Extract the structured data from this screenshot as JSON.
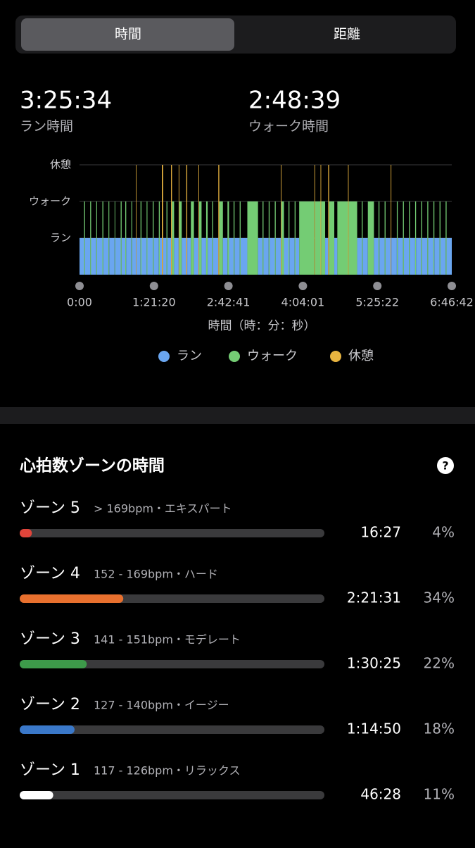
{
  "tabs": [
    "時間",
    "距離"
  ],
  "stats": [
    {
      "value": "3:25:34",
      "label": "ラン時間"
    },
    {
      "value": "2:48:39",
      "label": "ウォーク時間"
    }
  ],
  "chart_data": {
    "type": "state-band",
    "x": [
      0,
      300,
      360,
      700,
      760,
      1100,
      1150,
      1500,
      1560,
      1900,
      1950,
      2300,
      2340,
      2700,
      2760,
      3000,
      3060,
      3400,
      3450,
      3700,
      3730,
      4000,
      4060,
      4400,
      4450,
      4800,
      4860,
      5200,
      5260,
      5400,
      5480,
      5700,
      5760,
      6000,
      6060,
      6200,
      6500,
      6540,
      6700,
      7000,
      7060,
      7300,
      7500,
      7800,
      7840,
      8000,
      8300,
      8400,
      8700,
      8760,
      9100,
      9160,
      9400,
      9700,
      9800,
      10100,
      10160,
      10500,
      10560,
      11000,
      11700,
      12000,
      12060,
      12400,
      12460,
      12800,
      12860,
      13200,
      13240,
      13400,
      13700,
      13760,
      14100,
      14160,
      14400,
      15400,
      15440,
      15800,
      15840,
      16100,
      16300,
      16360,
      16700,
      16900,
      17600,
      17640,
      18200,
      18500,
      18560,
      18900,
      19300,
      19600,
      19660,
      20000,
      20060,
      20400,
      20440,
      20800,
      20860,
      21200,
      21260,
      21600,
      21660,
      22000,
      22060,
      22400,
      22460,
      22800,
      22860,
      23200,
      23260,
      23600,
      23660,
      24000,
      24060
    ],
    "values": [
      1,
      2,
      1,
      2,
      1,
      2,
      1,
      2,
      1,
      2,
      1,
      2,
      1,
      2,
      1,
      2,
      1,
      2,
      1,
      3,
      1,
      2,
      1,
      2,
      1,
      2,
      1,
      2,
      1,
      3,
      1,
      2,
      1,
      3,
      2,
      1,
      3,
      2,
      1,
      3,
      1,
      2,
      1,
      3,
      2,
      1,
      2,
      1,
      2,
      1,
      3,
      2,
      1,
      2,
      1,
      2,
      1,
      2,
      1,
      2,
      1,
      2,
      1,
      2,
      1,
      2,
      1,
      3,
      2,
      1,
      2,
      1,
      2,
      1,
      2,
      3,
      2,
      3,
      2,
      1,
      3,
      2,
      1,
      2,
      3,
      2,
      1,
      2,
      1,
      2,
      1,
      2,
      1,
      2,
      1,
      3,
      1,
      2,
      1,
      2,
      1,
      2,
      1,
      2,
      1,
      2,
      1,
      2,
      1,
      2,
      1,
      2,
      1,
      2,
      1
    ],
    "xlim": [
      0,
      24402
    ],
    "xticks": [
      {
        "value": 0,
        "label": "0:00"
      },
      {
        "value": 4880,
        "label": "1:21:20"
      },
      {
        "value": 9761,
        "label": "2:42:41"
      },
      {
        "value": 14641,
        "label": "4:04:01"
      },
      {
        "value": 19522,
        "label": "5:25:22"
      },
      {
        "value": 24402,
        "label": "6:46:42"
      }
    ],
    "ylim": [
      0,
      3
    ],
    "yticks": [
      {
        "value": 1,
        "label": "ラン"
      },
      {
        "value": 2,
        "label": "ウォーク"
      },
      {
        "value": 3,
        "label": "休憩"
      }
    ],
    "xlabel": "時間（時：分：秒）",
    "legend": [
      {
        "name": "ラン",
        "color": "#6aa6f0"
      },
      {
        "name": "ウォーク",
        "color": "#74cc74"
      },
      {
        "name": "休憩",
        "color": "#e8b440"
      }
    ]
  },
  "zones": {
    "title": "心拍数ゾーンの時間",
    "help_icon": "?",
    "items": [
      {
        "name": "ゾーン 5",
        "range": "> 169bpm・エキスパート",
        "time": "16:27",
        "percent": 4,
        "percent_label": "4%",
        "color": "#e0443a"
      },
      {
        "name": "ゾーン 4",
        "range": "152 - 169bpm・ハード",
        "time": "2:21:31",
        "percent": 34,
        "percent_label": "34%",
        "color": "#e8702e"
      },
      {
        "name": "ゾーン 3",
        "range": "141 - 151bpm・モデレート",
        "time": "1:30:25",
        "percent": 22,
        "percent_label": "22%",
        "color": "#3d9a4a"
      },
      {
        "name": "ゾーン 2",
        "range": "127 - 140bpm・イージー",
        "time": "1:14:50",
        "percent": 18,
        "percent_label": "18%",
        "color": "#3a78c9"
      },
      {
        "name": "ゾーン 1",
        "range": "117 - 126bpm・リラックス",
        "time": "46:28",
        "percent": 11,
        "percent_label": "11%",
        "color": "#ffffff"
      }
    ]
  }
}
